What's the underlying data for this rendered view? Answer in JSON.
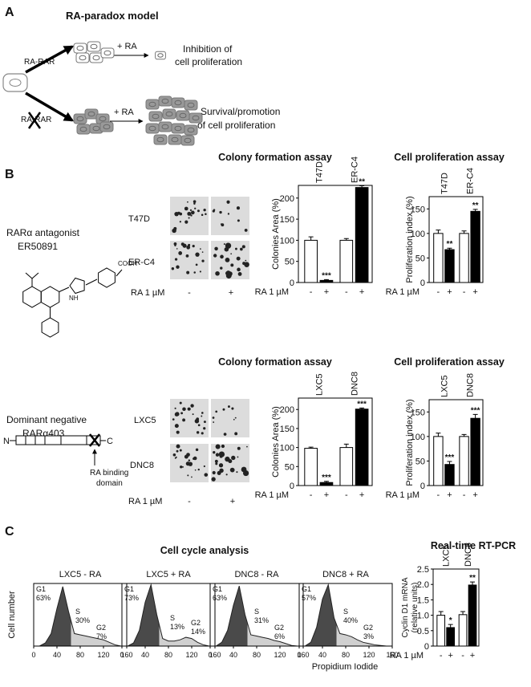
{
  "panel_a": {
    "letter": "A",
    "title": "RA-paradox model",
    "upper": {
      "receptor": "RA-RAR",
      "treatment": "+ RA",
      "outcome": [
        "Inhibition of",
        "cell proliferation"
      ]
    },
    "lower": {
      "receptor": "RA-RAR",
      "treatment": "+ RA",
      "outcome": [
        "Survival/promotion",
        "of cell proliferation"
      ]
    }
  },
  "panel_b": {
    "letter": "B",
    "rows": [
      {
        "name": [
          "RARα antagonist",
          "ER50891"
        ],
        "molecule_labels": [
          "COOH",
          "NH"
        ],
        "cell_lines": [
          "T47D",
          "ER-C4"
        ],
        "treatment": "RA 1 µM",
        "conditions": [
          "-",
          "+"
        ]
      },
      {
        "name": [
          "Dominant negative",
          "RARα403"
        ],
        "construct_labels": [
          "N",
          "C"
        ],
        "domain_label": [
          "RA binding",
          "domain"
        ],
        "cell_lines": [
          "LXC5",
          "DNC8"
        ],
        "treatment": "RA 1 µM",
        "conditions": [
          "-",
          "+"
        ]
      }
    ]
  },
  "panel_c": {
    "letter": "C",
    "title": "Cell cycle analysis",
    "x_label": "Propidium Iodide",
    "y_label": "Cell number"
  },
  "chart_data": [
    {
      "type": "bar",
      "title": "Colony formation assay",
      "group_labels": [
        "T47D",
        "ER-C4"
      ],
      "categories": [
        "-",
        "+",
        "-",
        "+"
      ],
      "x_label": "RA 1 µM",
      "y_label": "Colonies Area (%)",
      "values": [
        100,
        5,
        100,
        225
      ],
      "errors": [
        8,
        2,
        4,
        4
      ],
      "colors": [
        "#ffffff",
        "#000000",
        "#ffffff",
        "#000000"
      ],
      "significance": [
        null,
        "***",
        null,
        "**"
      ],
      "ylim": [
        0,
        230
      ],
      "yticks": [
        0,
        50,
        100,
        150,
        200
      ]
    },
    {
      "type": "bar",
      "title": "Cell proliferation assay",
      "group_labels": [
        "T47D",
        "ER-C4"
      ],
      "categories": [
        "-",
        "+",
        "-",
        "+"
      ],
      "x_label": "RA 1 µM",
      "y_label": "Proliferation index (%)",
      "values": [
        100,
        67,
        100,
        145
      ],
      "errors": [
        7,
        3,
        5,
        4
      ],
      "colors": [
        "#ffffff",
        "#000000",
        "#ffffff",
        "#000000"
      ],
      "significance": [
        null,
        "**",
        null,
        "**"
      ],
      "ylim": [
        0,
        175
      ],
      "yticks": [
        0,
        50,
        100,
        150
      ]
    },
    {
      "type": "bar",
      "title": "Colony formation assay",
      "group_labels": [
        "LXC5",
        "DNC8"
      ],
      "categories": [
        "-",
        "+",
        "-",
        "+"
      ],
      "x_label": "RA 1 µM",
      "y_label": "Colonies Area (%)",
      "values": [
        98,
        8,
        100,
        201
      ],
      "errors": [
        3,
        3,
        9,
        3
      ],
      "colors": [
        "#ffffff",
        "#000000",
        "#ffffff",
        "#000000"
      ],
      "significance": [
        null,
        "***",
        null,
        "***"
      ],
      "ylim": [
        0,
        230
      ],
      "yticks": [
        0,
        50,
        100,
        150,
        200
      ]
    },
    {
      "type": "bar",
      "title": "Cell proliferation assay",
      "group_labels": [
        "LXC5",
        "DNC8"
      ],
      "categories": [
        "-",
        "+",
        "-",
        "+"
      ],
      "x_label": "RA 1 µM",
      "y_label": "Proliferation index (%)",
      "values": [
        100,
        43,
        100,
        137
      ],
      "errors": [
        7,
        6,
        4,
        8
      ],
      "colors": [
        "#ffffff",
        "#000000",
        "#ffffff",
        "#000000"
      ],
      "significance": [
        null,
        "***",
        null,
        "***"
      ],
      "ylim": [
        0,
        175
      ],
      "yticks": [
        0,
        50,
        100,
        150
      ]
    },
    {
      "type": "area",
      "title": "LXC5 - RA",
      "x": [
        0,
        10,
        20,
        30,
        40,
        50,
        60,
        70,
        80,
        90,
        100,
        110,
        120,
        130,
        140,
        150,
        160
      ],
      "values": [
        0,
        0,
        5,
        20,
        60,
        95,
        55,
        20,
        18,
        16,
        14,
        12,
        10,
        6,
        2,
        0,
        0
      ],
      "xlim": [
        0,
        160
      ],
      "xticks": [
        0,
        40,
        80,
        120,
        160
      ],
      "ylim": [
        0,
        100
      ],
      "phases": [
        {
          "name": "G1",
          "value": 63,
          "label": "63%"
        },
        {
          "name": "S",
          "value": 30,
          "label": "30%"
        },
        {
          "name": "G2",
          "value": 7,
          "label": "7%"
        }
      ]
    },
    {
      "type": "area",
      "title": "LXC5 + RA",
      "x": [
        0,
        10,
        20,
        30,
        40,
        50,
        60,
        70,
        80,
        90,
        100,
        110,
        120,
        130,
        140,
        150,
        160
      ],
      "values": [
        0,
        0,
        5,
        25,
        70,
        98,
        50,
        12,
        8,
        8,
        10,
        14,
        12,
        6,
        2,
        0,
        0
      ],
      "xlim": [
        0,
        160
      ],
      "xticks": [
        0,
        40,
        80,
        120,
        160
      ],
      "ylim": [
        0,
        100
      ],
      "phases": [
        {
          "name": "G1",
          "value": 73,
          "label": "73%"
        },
        {
          "name": "S",
          "value": 13,
          "label": "13%"
        },
        {
          "name": "G2",
          "value": 14,
          "label": "14%"
        }
      ]
    },
    {
      "type": "area",
      "title": "DNC8 - RA",
      "x": [
        0,
        10,
        20,
        30,
        40,
        50,
        60,
        70,
        80,
        90,
        100,
        110,
        120,
        130,
        140,
        150,
        160
      ],
      "values": [
        0,
        0,
        6,
        25,
        65,
        96,
        50,
        18,
        16,
        14,
        12,
        9,
        7,
        4,
        1,
        0,
        0
      ],
      "xlim": [
        0,
        160
      ],
      "xticks": [
        0,
        40,
        80,
        120,
        160
      ],
      "ylim": [
        0,
        100
      ],
      "phases": [
        {
          "name": "G1",
          "value": 63,
          "label": "63%"
        },
        {
          "name": "S",
          "value": 31,
          "label": "31%"
        },
        {
          "name": "G2",
          "value": 6,
          "label": "6%"
        }
      ]
    },
    {
      "type": "area",
      "title": "DNC8 + RA",
      "x": [
        0,
        10,
        20,
        30,
        40,
        50,
        60,
        70,
        80,
        90,
        100,
        110,
        120,
        130,
        140,
        150,
        160
      ],
      "values": [
        0,
        0,
        6,
        30,
        75,
        98,
        45,
        20,
        18,
        15,
        10,
        6,
        4,
        2,
        1,
        0,
        0
      ],
      "xlim": [
        0,
        160
      ],
      "xticks": [
        0,
        40,
        80,
        120,
        160
      ],
      "ylim": [
        0,
        100
      ],
      "phases": [
        {
          "name": "G1",
          "value": 57,
          "label": "57%"
        },
        {
          "name": "S",
          "value": 40,
          "label": "40%"
        },
        {
          "name": "G2",
          "value": 3,
          "label": "3%"
        }
      ]
    },
    {
      "type": "bar",
      "title": "Real-time RT-PCR",
      "group_labels": [
        "LXC5",
        "DNC8"
      ],
      "categories": [
        "-",
        "+",
        "-",
        "+"
      ],
      "x_label": "RA 1 µM",
      "y_label": [
        "Cyclin D1 mRNA",
        "(relative units)"
      ],
      "values": [
        1.0,
        0.6,
        1.02,
        1.98
      ],
      "errors": [
        0.12,
        0.1,
        0.1,
        0.1
      ],
      "colors": [
        "#ffffff",
        "#000000",
        "#ffffff",
        "#000000"
      ],
      "significance": [
        null,
        "*",
        null,
        "**"
      ],
      "ylim": [
        0,
        2.5
      ],
      "yticks": [
        0,
        0.5,
        {
          "value": 1.0,
          "label": "1.0"
        },
        1.5,
        {
          "value": 2.0,
          "label": "2.0"
        },
        2.5
      ]
    }
  ]
}
